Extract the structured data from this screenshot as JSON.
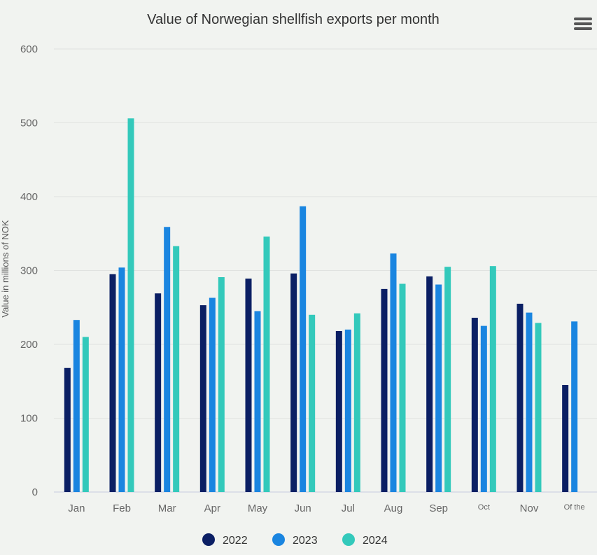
{
  "chart_data": {
    "type": "bar",
    "title": "Value of Norwegian shellfish exports per month",
    "ylabel": "Value in millions of NOK",
    "ylim": [
      0,
      600
    ],
    "yticks": [
      0,
      100,
      200,
      300,
      400,
      500,
      600
    ],
    "categories": [
      "Jan",
      "Feb",
      "Mar",
      "Apr",
      "May",
      "Jun",
      "Jul",
      "Aug",
      "Sep",
      "Oct",
      "Nov",
      "Of the"
    ],
    "series": [
      {
        "name": "2022",
        "color": "#0b1f64",
        "values": [
          168,
          295,
          269,
          253,
          289,
          296,
          218,
          275,
          292,
          236,
          255,
          145
        ]
      },
      {
        "name": "2023",
        "color": "#1a85e0",
        "values": [
          233,
          304,
          359,
          263,
          245,
          387,
          220,
          323,
          281,
          225,
          243,
          231
        ]
      },
      {
        "name": "2024",
        "color": "#33c9bb",
        "values": [
          210,
          506,
          333,
          291,
          346,
          240,
          242,
          282,
          305,
          306,
          229,
          null
        ]
      }
    ],
    "legend_position": "bottom-center",
    "grid": true
  },
  "menu_icon": "hamburger-menu-icon"
}
